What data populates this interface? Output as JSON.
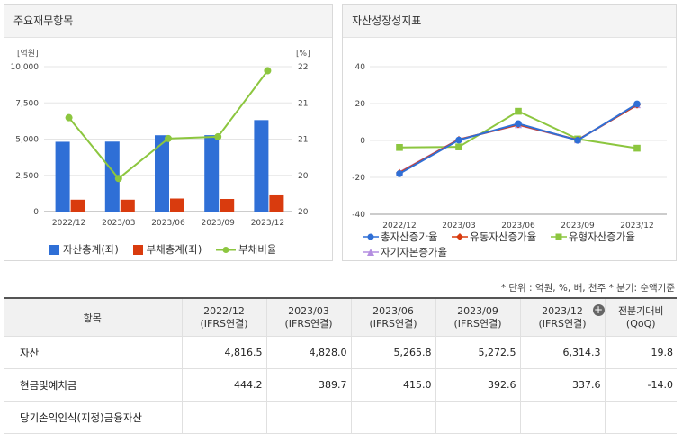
{
  "panels": {
    "left_title": "주요재무항목",
    "right_title": "자산성장성지표"
  },
  "chart_data": [
    {
      "type": "bar",
      "title": "주요재무항목",
      "categories": [
        "2022/12",
        "2023/03",
        "2023/06",
        "2023/09",
        "2023/12"
      ],
      "left_unit": "[억원]",
      "right_unit": "[%]",
      "left_ticks": [
        "10,000",
        "7,500",
        "5,000",
        "2,500",
        "0"
      ],
      "right_ticks": [
        "22",
        "21",
        "21",
        "20",
        "20"
      ],
      "ylim": [
        0,
        10000
      ],
      "y2lim": [
        19.5,
        22.0
      ],
      "series": [
        {
          "name": "자산총계(좌)",
          "type": "bar",
          "axis": "left",
          "color": "#2f6fd6",
          "values": [
            4816.5,
            4828.0,
            5265.8,
            5272.5,
            6314.3
          ]
        },
        {
          "name": "부채총계(좌)",
          "type": "bar",
          "axis": "left",
          "color": "#d93b0e",
          "values": [
            820,
            820,
            900,
            870,
            1120
          ]
        },
        {
          "name": "부채비율",
          "type": "line",
          "axis": "right",
          "color": "#8cc63f",
          "values": [
            21.12,
            20.07,
            20.76,
            20.79,
            21.93
          ]
        }
      ]
    },
    {
      "type": "line",
      "title": "자산성장성지표",
      "categories": [
        "2022/12",
        "2023/03",
        "2023/06",
        "2023/09",
        "2023/12"
      ],
      "y_ticks": [
        "40",
        "20",
        "0",
        "-20",
        "-40"
      ],
      "ylim": [
        -40,
        40
      ],
      "series": [
        {
          "name": "총자산증가율",
          "color": "#2f6fd6",
          "marker": "circle",
          "values": [
            -18,
            0.2,
            9.1,
            0.1,
            19.8
          ]
        },
        {
          "name": "유동자산증가율",
          "color": "#d93b0e",
          "marker": "diamond",
          "values": [
            -17.5,
            0.5,
            8.6,
            0.3,
            19.2
          ]
        },
        {
          "name": "유형자산증가율",
          "color": "#8cc63f",
          "marker": "square",
          "values": [
            -3.8,
            -3.5,
            15.8,
            0.8,
            -4.2
          ]
        },
        {
          "name": "자기자본증가율",
          "color": "#b48ee0",
          "marker": "triangle",
          "values": [
            -17.2,
            0.6,
            8.4,
            0.2,
            19.2
          ]
        }
      ]
    }
  ],
  "table": {
    "unit_note": "* 단위 : 억원, %, 배, 천주    * 분기: 순액기준",
    "item_header": "항목",
    "periods": [
      {
        "date": "2022/12",
        "basis": "(IFRS연결)"
      },
      {
        "date": "2023/03",
        "basis": "(IFRS연결)"
      },
      {
        "date": "2023/06",
        "basis": "(IFRS연결)"
      },
      {
        "date": "2023/09",
        "basis": "(IFRS연결)"
      },
      {
        "date": "2023/12",
        "basis": "(IFRS연결)"
      }
    ],
    "qoq_header": "전분기대비",
    "qoq_sub": "(QoQ)",
    "rows": [
      {
        "label": "자산",
        "values": [
          "4,816.5",
          "4,828.0",
          "5,265.8",
          "5,272.5",
          "6,314.3"
        ],
        "qoq": "19.8"
      },
      {
        "label": "현금및예치금",
        "values": [
          "444.2",
          "389.7",
          "415.0",
          "392.6",
          "337.6"
        ],
        "qoq": "-14.0"
      },
      {
        "label": "당기손익인식(지정)금융자산",
        "values": [
          "",
          "",
          "",
          "",
          ""
        ],
        "qoq": ""
      }
    ]
  }
}
